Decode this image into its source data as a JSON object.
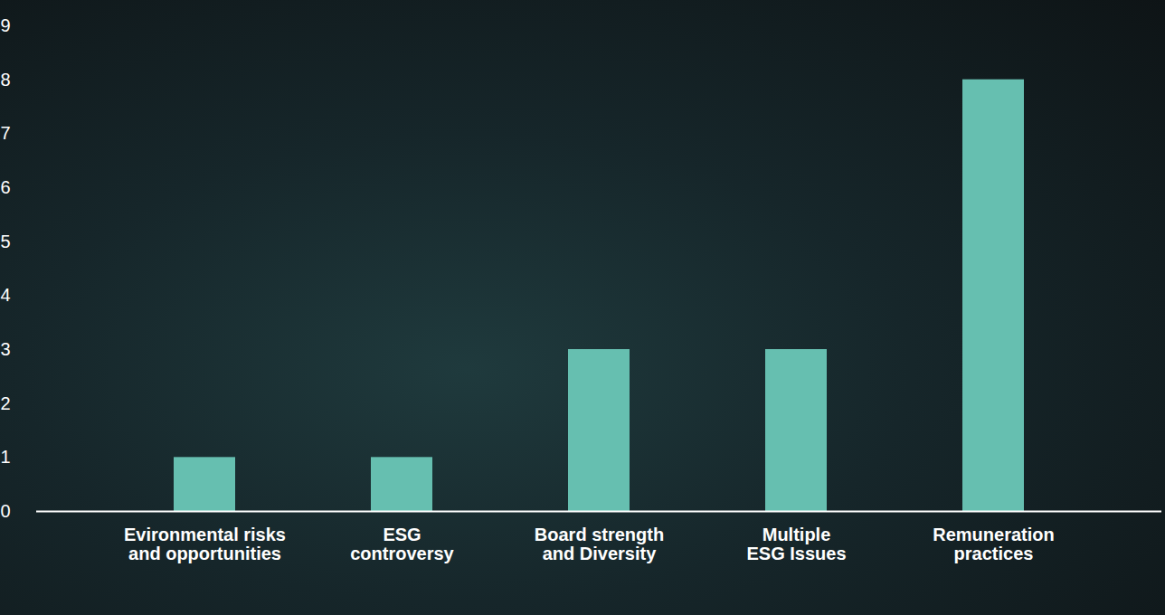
{
  "chart_data": {
    "type": "bar",
    "categories": [
      "Evironmental risks and opportunities",
      "ESG controversy",
      "Board strength and Diversity",
      "Multiple  ESG Issues",
      "Remuneration practices"
    ],
    "values": [
      1,
      1,
      3,
      3,
      8
    ],
    "color": "#66bfb0",
    "ylim": [
      0,
      9
    ],
    "yticks": [
      0,
      1,
      2,
      3,
      4,
      5,
      6,
      7,
      8,
      9
    ]
  }
}
